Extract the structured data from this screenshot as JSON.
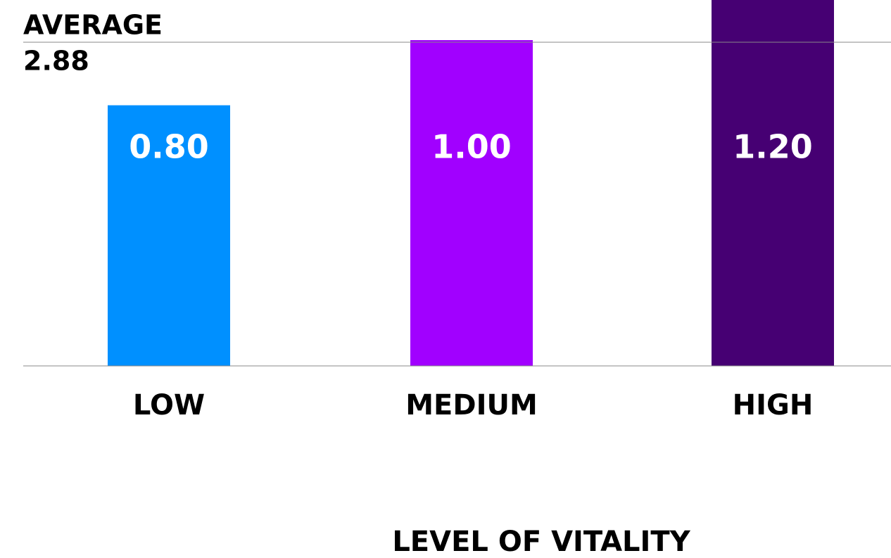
{
  "chart_data": {
    "type": "bar",
    "categories": [
      "LOW",
      "MEDIUM",
      "HIGH"
    ],
    "values": [
      0.8,
      1.0,
      1.2
    ],
    "value_labels": [
      "0.80",
      "1.00",
      "1.20"
    ],
    "colors": [
      "#0090ff",
      "#a100ff",
      "#460073"
    ],
    "ylim": [
      0,
      1.1
    ],
    "x_label": "LEVEL OF VITALITY",
    "reference_line": {
      "label": "AVERAGE",
      "text": "2.88"
    }
  }
}
